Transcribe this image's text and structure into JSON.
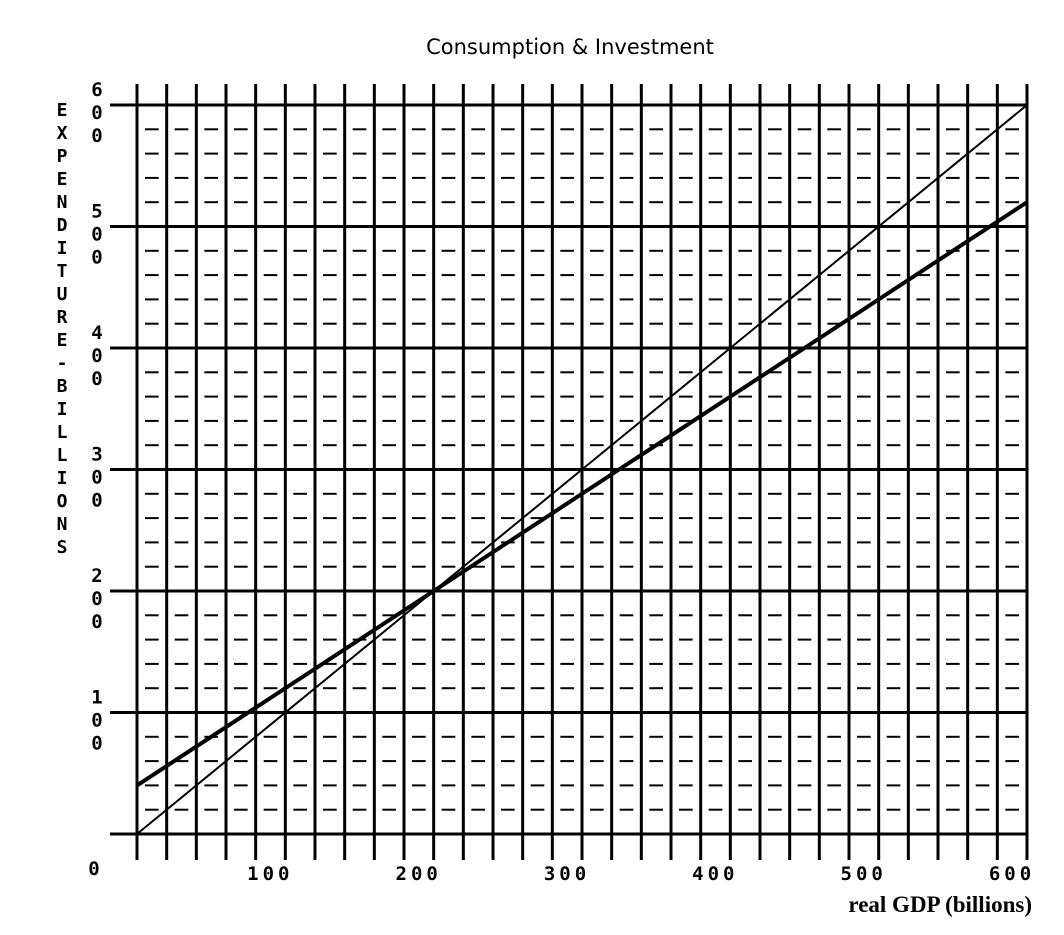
{
  "chart_data": {
    "type": "line",
    "title": "Consumption & Investment",
    "xlabel": "real GDP (billions)",
    "ylabel": "EXPENDITURE-BILLIONS",
    "xlim": [
      0,
      600
    ],
    "ylim": [
      0,
      600
    ],
    "x_ticks": [
      "100",
      "200",
      "300",
      "400",
      "500",
      "600"
    ],
    "y_ticks": [
      "600",
      "500",
      "400",
      "300",
      "200",
      "100"
    ],
    "origin_label": "0",
    "grid": true,
    "series": [
      {
        "x": [
          0,
          600
        ],
        "y": [
          0,
          600
        ],
        "color": "#000000"
      },
      {
        "x": [
          0,
          600
        ],
        "y": [
          40,
          520
        ],
        "color": "#000000"
      }
    ]
  }
}
